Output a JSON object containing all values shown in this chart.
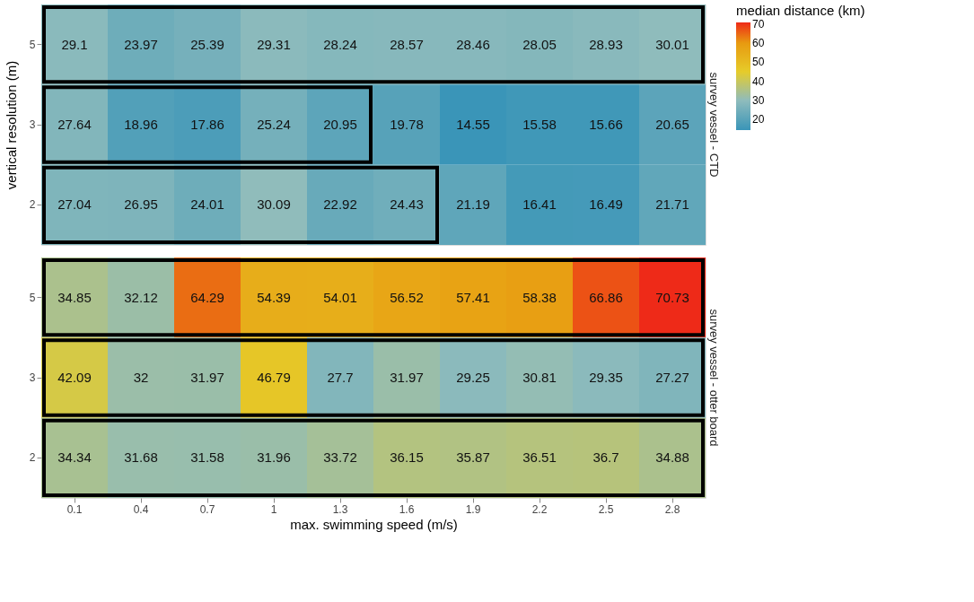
{
  "chart_data": [
    {
      "type": "heatmap",
      "title": "survey vessel - CTD",
      "ylabel": "vertical resolution (m)",
      "legend_title": "median distance (km)",
      "tick_labels": "y",
      "data_labels": true,
      "categories": [
        "0.1",
        "0.4",
        "0.7",
        "1",
        "1.3",
        "1.6",
        "1.9",
        "2.2",
        "2.5",
        "2.8"
      ],
      "y_categories": [
        "5",
        "3",
        "2"
      ],
      "cells": [
        [
          29.1,
          23.97,
          25.39,
          29.31,
          28.24,
          28.57,
          28.46,
          28.05,
          28.93,
          30.01
        ],
        [
          27.64,
          18.96,
          17.86,
          25.24,
          20.95,
          19.78,
          14.55,
          15.58,
          15.66,
          20.65
        ],
        [
          27.04,
          26.95,
          24.01,
          30.09,
          22.92,
          24.43,
          21.19,
          16.41,
          16.49,
          21.71
        ]
      ],
      "clim": [
        14.55,
        70.73
      ],
      "cticks": [
        20,
        30,
        40,
        50,
        60,
        70
      ]
    },
    {
      "type": "heatmap",
      "title": "survey vessel - otter board",
      "xlabel": "max. swimming speed (m/s)",
      "data_labels": true,
      "categories": [
        "0.1",
        "0.4",
        "0.7",
        "1",
        "1.3",
        "1.6",
        "1.9",
        "2.2",
        "2.5",
        "2.8"
      ],
      "y_categories": [
        "5",
        "3",
        "2"
      ],
      "cells": [
        [
          34.85,
          32.12,
          64.29,
          54.39,
          54.01,
          56.52,
          57.41,
          58.38,
          66.86,
          70.73
        ],
        [
          42.09,
          32,
          31.97,
          46.79,
          27.7,
          31.97,
          29.25,
          30.81,
          29.35,
          27.27
        ],
        [
          34.34,
          31.68,
          31.58,
          31.96,
          33.72,
          36.15,
          35.87,
          36.51,
          36.7,
          34.88
        ]
      ]
    }
  ]
}
